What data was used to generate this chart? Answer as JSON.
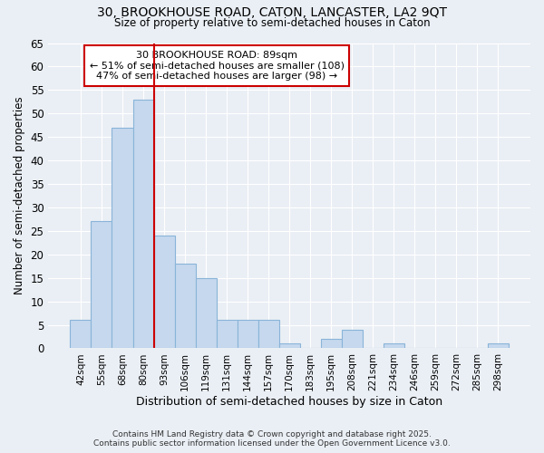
{
  "title_line1": "30, BROOKHOUSE ROAD, CATON, LANCASTER, LA2 9QT",
  "title_line2": "Size of property relative to semi-detached houses in Caton",
  "xlabel": "Distribution of semi-detached houses by size in Caton",
  "ylabel": "Number of semi-detached properties",
  "categories": [
    "42sqm",
    "55sqm",
    "68sqm",
    "80sqm",
    "93sqm",
    "106sqm",
    "119sqm",
    "131sqm",
    "144sqm",
    "157sqm",
    "170sqm",
    "183sqm",
    "195sqm",
    "208sqm",
    "221sqm",
    "234sqm",
    "246sqm",
    "259sqm",
    "272sqm",
    "285sqm",
    "298sqm"
  ],
  "values": [
    6,
    27,
    47,
    53,
    24,
    18,
    15,
    6,
    6,
    6,
    1,
    0,
    2,
    4,
    0,
    1,
    0,
    0,
    0,
    0,
    1
  ],
  "bar_color": "#c5d8ee",
  "bar_edge_color": "#8ab4d8",
  "background_color": "#eaeff5",
  "grid_color": "#ffffff",
  "property_label": "30 BROOKHOUSE ROAD: 89sqm",
  "annotation_line2": "← 51% of semi-detached houses are smaller (108)",
  "annotation_line3": "47% of semi-detached houses are larger (98) →",
  "vline_bar_index": 4,
  "vline_color": "#cc0000",
  "annotation_box_edge_color": "#cc0000",
  "ylim": [
    0,
    65
  ],
  "yticks": [
    0,
    5,
    10,
    15,
    20,
    25,
    30,
    35,
    40,
    45,
    50,
    55,
    60,
    65
  ],
  "footnote1": "Contains HM Land Registry data © Crown copyright and database right 2025.",
  "footnote2": "Contains public sector information licensed under the Open Government Licence v3.0."
}
